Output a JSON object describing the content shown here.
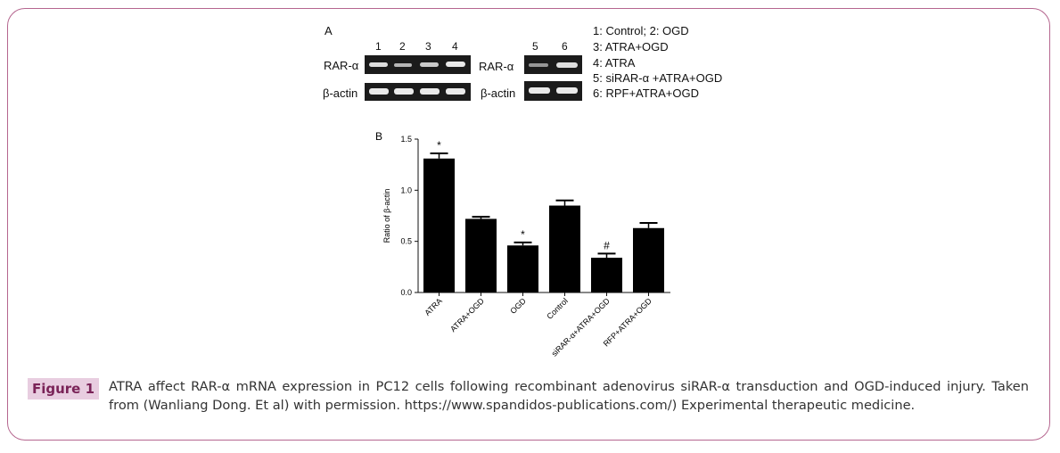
{
  "panel_a": {
    "label": "A",
    "gel1": {
      "lanes": [
        "1",
        "2",
        "3",
        "4"
      ],
      "row_labels": [
        "RAR-α",
        "β-actin"
      ]
    },
    "gel2": {
      "lanes": [
        "5",
        "6"
      ],
      "row_labels": [
        "RAR-α",
        "β-actin"
      ]
    },
    "legend": [
      "1: Control; 2: OGD",
      "3: ATRA+OGD",
      "4: ATRA",
      "5: siRAR-α +ATRA+OGD",
      "6: RPF+ATRA+OGD"
    ]
  },
  "chart_data": {
    "type": "bar",
    "panel_label": "B",
    "ylabel": "Ratio of β-actin",
    "ylim": [
      0,
      1.5
    ],
    "yticks": [
      "0.0",
      "0.5",
      "1.0",
      "1.5"
    ],
    "categories": [
      "ATRA",
      "ATRA+OGD",
      "OGD",
      "Control",
      "siRAR-α+ATRA+OGD",
      "RFP+ATRA+OGD"
    ],
    "values": [
      1.31,
      0.72,
      0.46,
      0.85,
      0.34,
      0.63
    ],
    "errors": [
      0.05,
      0.02,
      0.03,
      0.05,
      0.04,
      0.05
    ],
    "annotations": [
      "*",
      "",
      "*",
      "",
      "#",
      ""
    ]
  },
  "caption": {
    "tag": "Figure 1",
    "text": "ATRA affect RAR-α mRNA expression in PC12 cells following recombinant adenovirus siRAR-α transduction and OGD-induced injury. Taken from (Wanliang Dong. Et al) with permission. https://www.spandidos-publications.com/) Experimental therapeutic medicine."
  }
}
